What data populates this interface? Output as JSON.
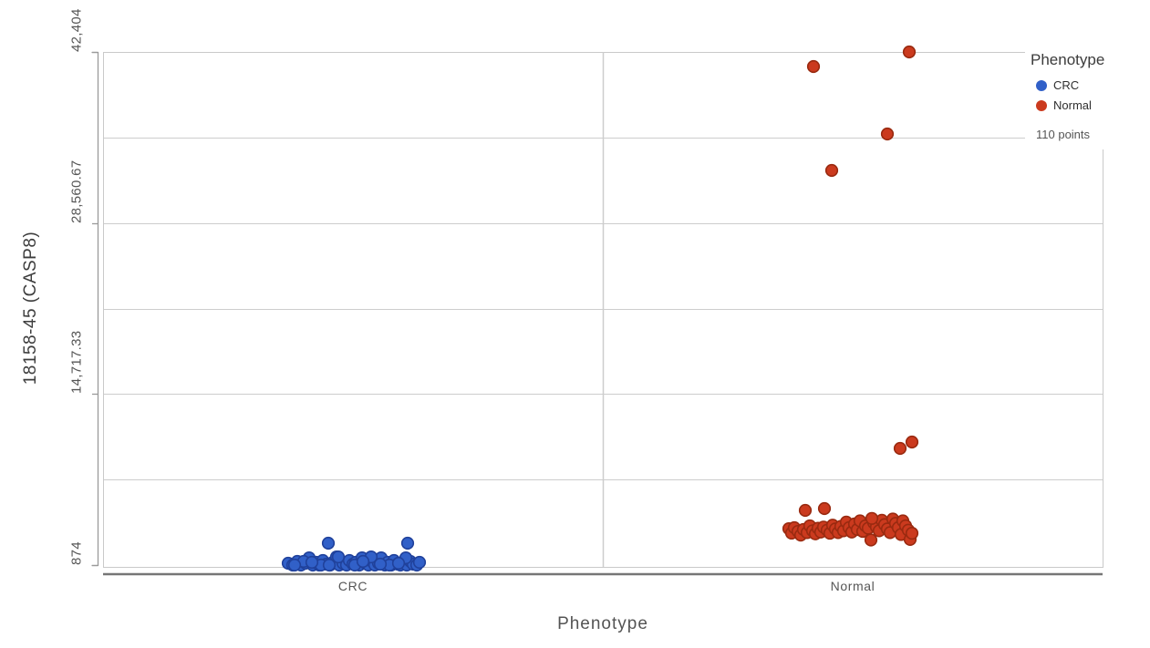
{
  "chart_data": {
    "type": "scatter",
    "variant": "jittered-strip-plot",
    "title": "",
    "xlabel": "Phenotype",
    "ylabel": "18158-45 (CASP8)",
    "categories": [
      "CRC",
      "Normal"
    ],
    "x_tick_labels": [
      "CRC",
      "Normal"
    ],
    "ylim": [
      874,
      42404
    ],
    "y_ticks": [
      874,
      14717.33,
      28560.67,
      42404
    ],
    "y_tick_labels": [
      "874",
      "14,717.33",
      "28,560.67",
      "42,404"
    ],
    "gridline_values": [
      7795.67,
      14717.33,
      21639,
      28560.67,
      35482.33,
      42404
    ],
    "grid": "on",
    "points_label": "110 points",
    "legend": {
      "title": "Phenotype",
      "position": "top-right",
      "items": [
        {
          "label": "CRC",
          "color": "#3160c8"
        },
        {
          "label": "Normal",
          "color": "#cb3a1e"
        }
      ]
    },
    "series": [
      {
        "name": "CRC",
        "fill": "#3160c8",
        "stroke": "#20419b",
        "points": [
          [
            -71,
            1022
          ],
          [
            -66,
            874
          ],
          [
            -61,
            1170
          ],
          [
            -57,
            874
          ],
          [
            -52,
            1022
          ],
          [
            -48,
            1459
          ],
          [
            -44,
            874
          ],
          [
            -40,
            1096
          ],
          [
            -37,
            874
          ],
          [
            -33,
            1243
          ],
          [
            -29,
            948
          ],
          [
            -25,
            874
          ],
          [
            -22,
            1096
          ],
          [
            -18,
            1533
          ],
          [
            -15,
            874
          ],
          [
            -11,
            1022
          ],
          [
            -7,
            874
          ],
          [
            -4,
            1243
          ],
          [
            0,
            948
          ],
          [
            3,
            1096
          ],
          [
            7,
            874
          ],
          [
            10,
            1459
          ],
          [
            14,
            1022
          ],
          [
            17,
            874
          ],
          [
            21,
            1170
          ],
          [
            24,
            874
          ],
          [
            28,
            1022
          ],
          [
            31,
            1459
          ],
          [
            35,
            874
          ],
          [
            38,
            1096
          ],
          [
            42,
            874
          ],
          [
            45,
            1243
          ],
          [
            49,
            948
          ],
          [
            52,
            874
          ],
          [
            56,
            1096
          ],
          [
            59,
            874
          ],
          [
            63,
            1170
          ],
          [
            66,
            948
          ],
          [
            70,
            874
          ],
          [
            73,
            1096
          ],
          [
            -54,
            1170
          ],
          [
            -35,
            874
          ],
          [
            -16,
            1533
          ],
          [
            2,
            874
          ],
          [
            20,
            1533
          ],
          [
            40,
            874
          ],
          [
            58,
            1459
          ],
          [
            -64,
            874
          ],
          [
            -45,
            1096
          ],
          [
            -26,
            874
          ],
          [
            11,
            1170
          ],
          [
            30,
            948
          ],
          [
            50,
            1022
          ],
          [
            -27,
            2644
          ],
          [
            60,
            2644
          ]
        ]
      },
      {
        "name": "Normal",
        "fill": "#cb3a1e",
        "stroke": "#992a10",
        "points": [
          [
            -70,
            3820
          ],
          [
            -67,
            3460
          ],
          [
            -64,
            3900
          ],
          [
            -60,
            3600
          ],
          [
            -57,
            3300
          ],
          [
            -54,
            3750
          ],
          [
            -50,
            3500
          ],
          [
            -47,
            4050
          ],
          [
            -44,
            3650
          ],
          [
            -41,
            3400
          ],
          [
            -38,
            3850
          ],
          [
            -35,
            3550
          ],
          [
            -32,
            3950
          ],
          [
            -28,
            3700
          ],
          [
            -25,
            3450
          ],
          [
            -22,
            4100
          ],
          [
            -19,
            3800
          ],
          [
            -16,
            3500
          ],
          [
            -13,
            4000
          ],
          [
            -10,
            3650
          ],
          [
            -7,
            4350
          ],
          [
            -4,
            3900
          ],
          [
            -1,
            3550
          ],
          [
            2,
            4200
          ],
          [
            5,
            3750
          ],
          [
            8,
            4450
          ],
          [
            11,
            3600
          ],
          [
            14,
            4050
          ],
          [
            17,
            3850
          ],
          [
            20,
            2900
          ],
          [
            23,
            4300
          ],
          [
            26,
            3950
          ],
          [
            29,
            3650
          ],
          [
            32,
            4500
          ],
          [
            35,
            4150
          ],
          [
            38,
            3800
          ],
          [
            41,
            3500
          ],
          [
            44,
            4600
          ],
          [
            47,
            4250
          ],
          [
            50,
            3900
          ],
          [
            53,
            3350
          ],
          [
            55,
            4450
          ],
          [
            58,
            4050
          ],
          [
            61,
            3700
          ],
          [
            63,
            2950
          ],
          [
            65,
            3450
          ],
          [
            21,
            4650
          ],
          [
            -52,
            5300
          ],
          [
            -31,
            5446
          ],
          [
            52,
            10315
          ],
          [
            65,
            10831
          ],
          [
            -23,
            32814
          ],
          [
            38,
            35764
          ],
          [
            -43,
            41224
          ],
          [
            62,
            42404
          ]
        ]
      }
    ]
  }
}
